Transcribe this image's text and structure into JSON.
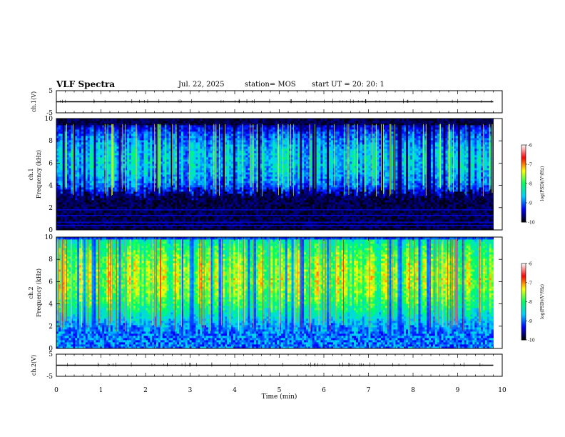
{
  "header": {
    "title": "VLF Spectra",
    "date": "Jul. 22, 2025",
    "station": "station= MOS",
    "start_ut": "start UT =  20: 20: 1"
  },
  "chart_data": [
    {
      "type": "line",
      "panel": "ch1-waveform",
      "ylabel": "ch.1(V)",
      "ylim": [
        -5,
        5
      ],
      "yticks": [
        "5",
        "-5"
      ],
      "xlim": [
        0,
        10
      ],
      "series": [
        {
          "x": [
            0,
            9.8
          ],
          "values": [
            0,
            0
          ]
        }
      ]
    },
    {
      "type": "heatmap",
      "panel": "ch1-spectrogram",
      "ylabel": [
        "ch.1",
        "Frequency (kHz)"
      ],
      "ylim": [
        0,
        10
      ],
      "yticks": [
        "0",
        "2",
        "4",
        "6",
        "8",
        "10"
      ],
      "xlim": [
        0,
        10
      ],
      "data_xlim": [
        0,
        9.8
      ],
      "band_khz": [
        3,
        9.5
      ],
      "band_level": -8.2,
      "background_level": -10,
      "horizontal_lines_khz": [
        0.4,
        0.7,
        1.3,
        1.8
      ],
      "colorbar": {
        "label": "log(PSD)(V²/Hz)",
        "range": [
          -10,
          -6
        ],
        "ticks": [
          "-6",
          "-7",
          "-8",
          "-9",
          "-10"
        ]
      }
    },
    {
      "type": "heatmap",
      "panel": "ch2-spectrogram",
      "ylabel": [
        "ch.2",
        "Frequency (kHz)"
      ],
      "ylim": [
        0,
        10
      ],
      "yticks": [
        "0",
        "2",
        "4",
        "6",
        "8",
        "10"
      ],
      "xlim": [
        0,
        10
      ],
      "data_xlim": [
        0,
        9.8
      ],
      "band_khz": [
        1.5,
        9.8
      ],
      "band_center_khz": 6.5,
      "band_level": -7.2,
      "background_level": -9.3,
      "colorbar": {
        "label": "log(PSD)(V²/Hz)",
        "range": [
          -10,
          -6
        ],
        "ticks": [
          "-6",
          "-7",
          "-8",
          "-9",
          "-10"
        ]
      }
    },
    {
      "type": "line",
      "panel": "ch2-waveform",
      "ylabel": "ch.2(V)",
      "ylim": [
        -5,
        5
      ],
      "yticks": [
        "5",
        "-5"
      ],
      "xlim": [
        0,
        10
      ],
      "xlabel": "Time (min)",
      "xticks": [
        "0",
        "1",
        "2",
        "3",
        "4",
        "5",
        "6",
        "7",
        "8",
        "9",
        "10"
      ],
      "series": [
        {
          "x": [
            0,
            9.8
          ],
          "values": [
            0,
            0
          ]
        }
      ]
    }
  ],
  "colors": {
    "colormap": [
      "#000000",
      "#0000ff",
      "#00d0ff",
      "#00ff60",
      "#ffff00",
      "#ff0000",
      "#ffffff"
    ],
    "axis": "#000000",
    "background": "#ffffff"
  }
}
